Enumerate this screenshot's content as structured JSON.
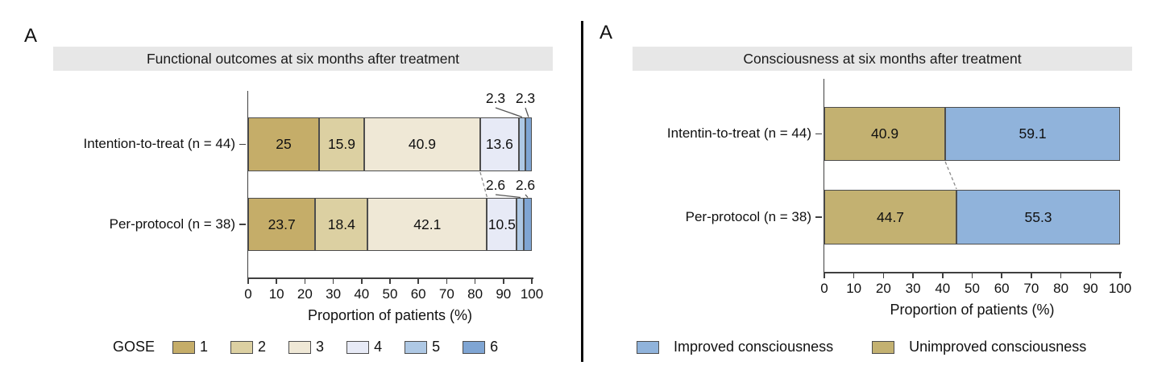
{
  "figure": {
    "divider_color": "#0a0a0a",
    "background": "#ffffff",
    "title_bar_bg": "#E7E7E7"
  },
  "chart_data": [
    {
      "type": "bar",
      "variant": "horizontal-stacked",
      "panel_label": "A",
      "title": "Functional outcomes at six months after treatment",
      "xlabel": "Proportion of patients (%)",
      "xlim": [
        0,
        100
      ],
      "x_ticks": [
        "0",
        "10",
        "20",
        "30",
        "40",
        "50",
        "60",
        "70",
        "80",
        "90",
        "100"
      ],
      "grid": false,
      "legend_position": "bottom",
      "legend_title": "GOSE",
      "categories": [
        "Intention-to-treat (n = 44)",
        "Per-protocol (n = 38)"
      ],
      "series": [
        {
          "name": "1",
          "color": "#C5AD69",
          "values": [
            25,
            23.7
          ]
        },
        {
          "name": "2",
          "color": "#DCD0A2",
          "values": [
            15.9,
            18.4
          ]
        },
        {
          "name": "3",
          "color": "#EFE8D6",
          "values": [
            40.9,
            42.1
          ]
        },
        {
          "name": "4",
          "color": "#E7EAF6",
          "values": [
            13.6,
            10.5
          ]
        },
        {
          "name": "5",
          "color": "#AEC8E4",
          "values": [
            2.3,
            2.6
          ]
        },
        {
          "name": "6",
          "color": "#7FA5D3",
          "values": [
            2.3,
            2.6
          ]
        }
      ],
      "inside_label_min": 5,
      "dashed_connector_after_stack": 3
    },
    {
      "type": "bar",
      "variant": "horizontal-stacked",
      "panel_label": "A",
      "title": "Consciousness at six months after treatment",
      "xlabel": "Proportion of patients (%)",
      "xlim": [
        0,
        100
      ],
      "x_ticks": [
        "0",
        "10",
        "20",
        "30",
        "40",
        "50",
        "60",
        "70",
        "80",
        "90",
        "100"
      ],
      "grid": false,
      "legend_position": "bottom",
      "categories": [
        "Intentin-to-treat (n = 44)",
        "Per-protocol (n = 38)"
      ],
      "series": [
        {
          "name": "Unimproved consciousness",
          "color": "#C3B171",
          "values": [
            40.9,
            44.7
          ]
        },
        {
          "name": "Improved consciousness",
          "color": "#90B3DB",
          "values": [
            59.1,
            55.3
          ]
        }
      ],
      "legend": [
        {
          "label": "Improved consciousness",
          "color": "#90B3DB"
        },
        {
          "label": "Unimproved consciousness",
          "color": "#C3B171"
        }
      ],
      "inside_label_min": 5,
      "dashed_connector_after_stack": 1
    }
  ]
}
